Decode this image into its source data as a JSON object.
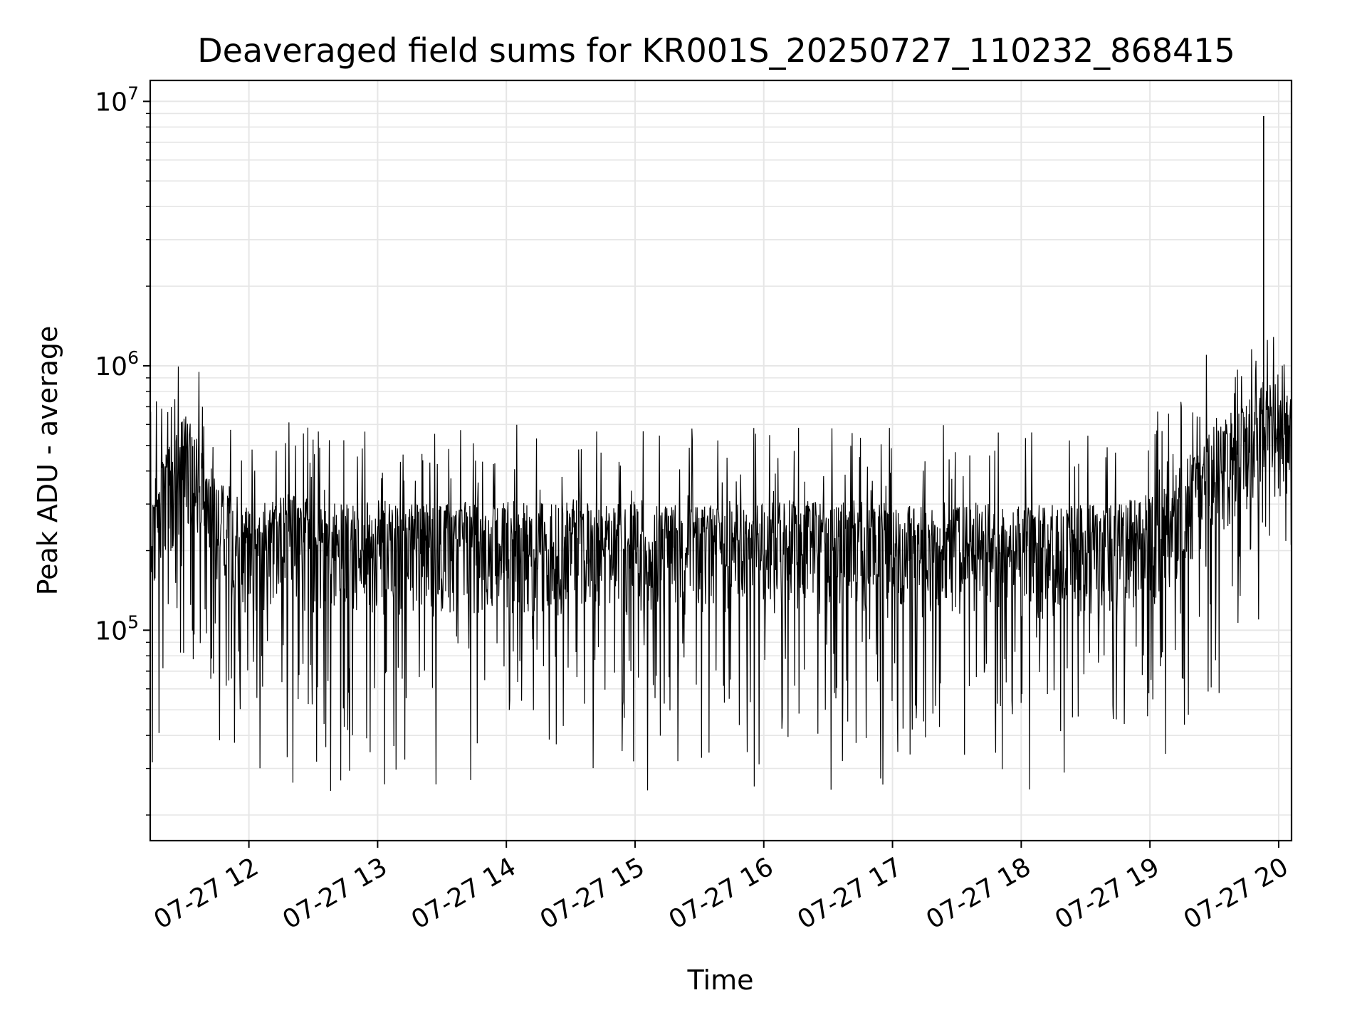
{
  "chart_data": {
    "type": "line",
    "title": "Deaveraged field sums for KR001S_20250727_110232_868415",
    "xlabel": "Time",
    "ylabel": "Peak ADU - average",
    "yscale": "log",
    "ylim": [
      16000,
      12000000
    ],
    "xlim": [
      "07-27 11:14",
      "07-27 20:06"
    ],
    "grid": true,
    "x_ticks": [
      "07-27 12",
      "07-27 13",
      "07-27 14",
      "07-27 15",
      "07-27 16",
      "07-27 17",
      "07-27 18",
      "07-27 19",
      "07-27 20"
    ],
    "y_ticks": [
      {
        "base": "10",
        "exp": "5",
        "value": 100000
      },
      {
        "base": "10",
        "exp": "6",
        "value": 1000000
      },
      {
        "base": "10",
        "exp": "7",
        "value": 10000000
      }
    ],
    "series": [
      {
        "color": "#000000",
        "x": [
          "07-27 11:14",
          "07-27 11:30",
          "07-27 11:45",
          "07-27 12:00",
          "07-27 12:15",
          "07-27 12:30",
          "07-27 12:45",
          "07-27 13:00",
          "07-27 13:15",
          "07-27 13:30",
          "07-27 13:45",
          "07-27 14:00",
          "07-27 14:15",
          "07-27 14:30",
          "07-27 14:45",
          "07-27 15:00",
          "07-27 15:15",
          "07-27 15:30",
          "07-27 15:45",
          "07-27 16:00",
          "07-27 16:15",
          "07-27 16:30",
          "07-27 16:45",
          "07-27 17:00",
          "07-27 17:15",
          "07-27 17:30",
          "07-27 17:45",
          "07-27 18:00",
          "07-27 18:15",
          "07-27 18:30",
          "07-27 18:45",
          "07-27 19:00",
          "07-27 19:15",
          "07-27 19:30",
          "07-27 19:45",
          "07-27 19:53",
          "07-27 20:00",
          "07-27 20:06"
        ],
        "y": [
          230000,
          450000,
          260000,
          200000,
          220000,
          210000,
          200000,
          210000,
          200000,
          200000,
          210000,
          210000,
          200000,
          210000,
          200000,
          210000,
          200000,
          200000,
          210000,
          200000,
          210000,
          200000,
          210000,
          200000,
          200000,
          210000,
          200000,
          200000,
          200000,
          200000,
          200000,
          220000,
          280000,
          420000,
          480000,
          600000,
          560000,
          560000
        ]
      }
    ]
  }
}
